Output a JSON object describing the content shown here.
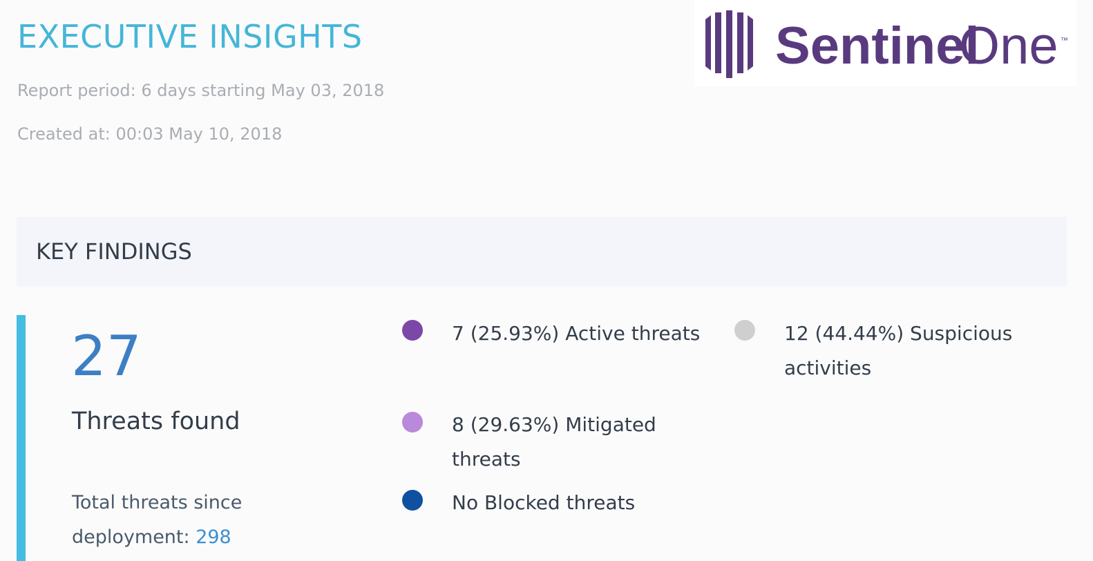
{
  "header": {
    "title": "EXECUTIVE INSIGHTS",
    "report_period": "Report period: 6 days starting May 03, 2018",
    "created_at": "Created at: 00:03 May 10, 2018"
  },
  "logo": {
    "text_left": "Sentinel",
    "text_right": "One",
    "trademark": "™",
    "color": "#5a3a7f"
  },
  "key_findings": {
    "title": "KEY FINDINGS",
    "total_count": "27",
    "total_label": "Threats found",
    "since_deployment_label": "Total threats since deployment:",
    "since_deployment_value": "298"
  },
  "legend": [
    {
      "text": "7 (25.93%) Active threats",
      "color": "#7b48a8"
    },
    {
      "text": "12 (44.44%) Suspicious activities",
      "color": "#cfcfcf"
    },
    {
      "text": "8 (29.63%) Mitigated threats",
      "color": "#b98ad9"
    },
    {
      "text": "No Blocked threats",
      "color": "#1050a0"
    }
  ]
}
